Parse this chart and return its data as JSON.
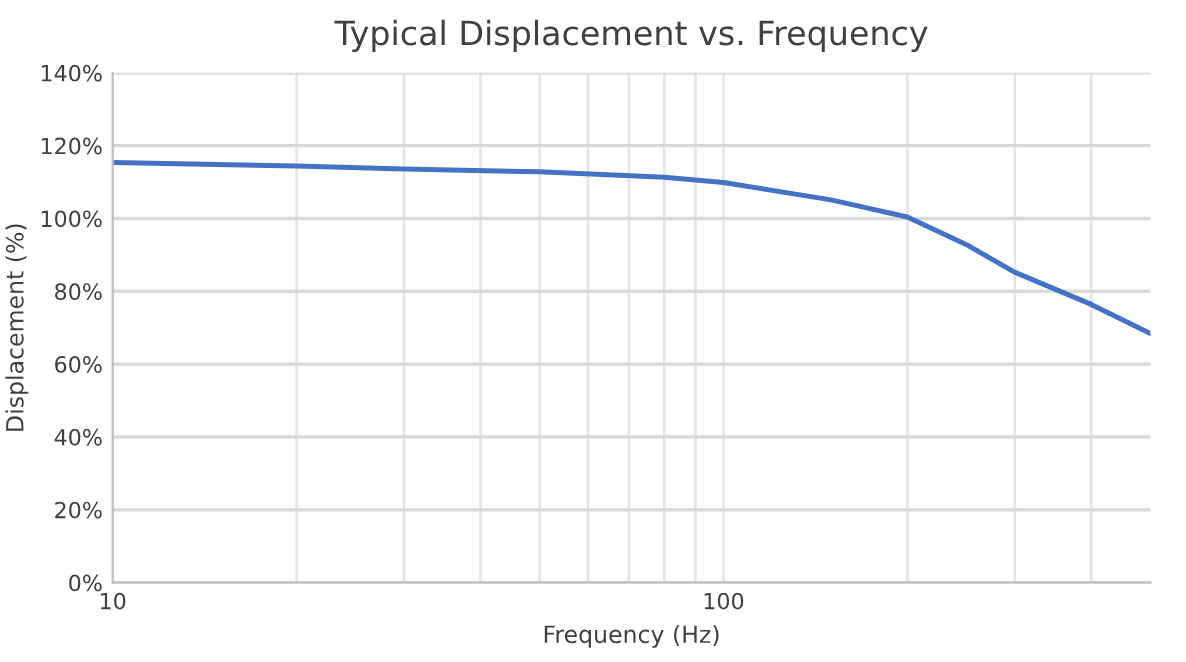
{
  "chart_data": {
    "type": "line",
    "title": "Typical Displacement vs. Frequency",
    "xlabel": "Frequency (Hz)",
    "ylabel": "Displacement (%)",
    "log": "x",
    "x": [
      10,
      20,
      30,
      50,
      80,
      100,
      150,
      200,
      250,
      300,
      400,
      500
    ],
    "series": [
      {
        "color": "#4472c4",
        "values": [
          115.4,
          114.4,
          113.6,
          112.8,
          111.3,
          109.9,
          105.1,
          100.4,
          92.8,
          85.2,
          76.4,
          68.4
        ]
      }
    ],
    "xlim": [
      10,
      500
    ],
    "xticks": [
      10,
      {
        "value": 20,
        "label": null
      },
      {
        "value": 30,
        "label": null
      },
      {
        "value": 40,
        "label": null
      },
      {
        "value": 50,
        "label": null
      },
      {
        "value": 60,
        "label": null
      },
      {
        "value": 70,
        "label": null
      },
      {
        "value": 80,
        "label": null
      },
      {
        "value": 90,
        "label": null
      },
      100,
      {
        "value": 200,
        "label": null
      },
      {
        "value": 300,
        "label": null
      },
      {
        "value": 400,
        "label": null
      }
    ],
    "ylim": [
      0,
      140
    ],
    "yticks": [
      {
        "value": 0,
        "label": "0%"
      },
      {
        "value": 20,
        "label": "20%"
      },
      {
        "value": 40,
        "label": "40%"
      },
      {
        "value": 60,
        "label": "60%"
      },
      {
        "value": 80,
        "label": "80%"
      },
      {
        "value": 100,
        "label": "100%"
      },
      {
        "value": 120,
        "label": "120%"
      },
      {
        "value": 140,
        "label": "140%"
      }
    ],
    "grid": true,
    "marker": "none",
    "line_style": "solid"
  }
}
